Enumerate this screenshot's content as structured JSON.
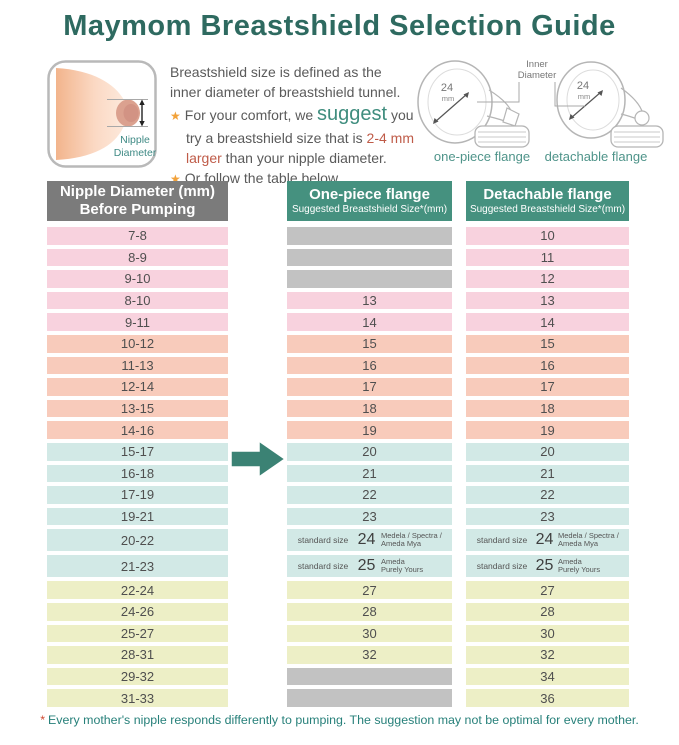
{
  "title": "Maymom Breastshield Selection Guide",
  "colors": {
    "title_teal": "#2e6a60",
    "header_teal": "#45917f",
    "header_gray": "#7b7b7b",
    "row_pink": "#f8d2de",
    "row_salmon": "#f8cbbb",
    "row_teal": "#d2e9e6",
    "row_yellow": "#edefc6",
    "empty_gray": "#c2c2c2",
    "highlight_red": "#bf5b48",
    "suggest_teal": "#3f8d7e",
    "star_orange": "#f2a23a",
    "arrow_green": "#3b8274",
    "footnote_teal": "#27807a"
  },
  "intro": {
    "line1": "Breastshield size is defined as the",
    "line2": "inner diameter of breastshield tunnel.",
    "bullet1_pre": "For your comfort, we ",
    "bullet1_emph": "suggest",
    "bullet1_post": " you",
    "bullet1_line2_pre": "try a breastshield size that is ",
    "bullet1_line2_hl": "2-4 mm",
    "bullet1_line3_hl": "larger",
    "bullet1_line3_post": " than your nipple diameter.",
    "bullet2": "Or follow the table below.",
    "nipple_label_line1": "Nipple",
    "nipple_label_line2": "Diameter"
  },
  "flanges": {
    "inner_diameter_line1": "Inner",
    "inner_diameter_line2": "Diameter",
    "left_size": "24",
    "left_unit": "mm",
    "right_size": "24",
    "right_unit": "mm",
    "left_caption": "one-piece flange",
    "right_caption": "detachable flange"
  },
  "table": {
    "col1_header": {
      "line1": "Nipple Diameter (mm)",
      "line2": "Before Pumping"
    },
    "col2_header": {
      "line1": "One-piece flange",
      "line2": "Suggested Breastshield Size*(mm)"
    },
    "col3_header": {
      "line1": "Detachable flange",
      "line2": "Suggested Breastshield Size*(mm)"
    },
    "rows": [
      {
        "nipple": "7-8",
        "color": "pink",
        "one_piece": null,
        "detachable": "10"
      },
      {
        "nipple": "8-9",
        "color": "pink",
        "one_piece": null,
        "detachable": "11"
      },
      {
        "nipple": "9-10",
        "color": "pink",
        "one_piece": null,
        "detachable": "12"
      },
      {
        "nipple": "8-10",
        "color": "pink",
        "one_piece": "13",
        "detachable": "13"
      },
      {
        "nipple": "9-11",
        "color": "pink",
        "one_piece": "14",
        "detachable": "14"
      },
      {
        "nipple": "10-12",
        "color": "salmon",
        "one_piece": "15",
        "detachable": "15"
      },
      {
        "nipple": "11-13",
        "color": "salmon",
        "one_piece": "16",
        "detachable": "16"
      },
      {
        "nipple": "12-14",
        "color": "salmon",
        "one_piece": "17",
        "detachable": "17"
      },
      {
        "nipple": "13-15",
        "color": "salmon",
        "one_piece": "18",
        "detachable": "18"
      },
      {
        "nipple": "14-16",
        "color": "salmon",
        "one_piece": "19",
        "detachable": "19"
      },
      {
        "nipple": "15-17",
        "color": "teal",
        "one_piece": "20",
        "detachable": "20"
      },
      {
        "nipple": "16-18",
        "color": "teal",
        "one_piece": "21",
        "detachable": "21"
      },
      {
        "nipple": "17-19",
        "color": "teal",
        "one_piece": "22",
        "detachable": "22"
      },
      {
        "nipple": "19-21",
        "color": "teal",
        "one_piece": "23",
        "detachable": "23"
      },
      {
        "nipple": "20-22",
        "color": "teal",
        "tall": true,
        "one_piece": {
          "label": "standard size",
          "size": "24",
          "brands": [
            "Medela / Spectra /",
            "Ameda Mya"
          ]
        },
        "detachable": {
          "label": "standard size",
          "size": "24",
          "brands": [
            "Medela / Spectra /",
            "Ameda Mya"
          ]
        }
      },
      {
        "nipple": "21-23",
        "color": "teal",
        "tall": true,
        "one_piece": {
          "label": "standard size",
          "size": "25",
          "brands": [
            "Ameda",
            "Purely Yours"
          ]
        },
        "detachable": {
          "label": "standard size",
          "size": "25",
          "brands": [
            "Ameda",
            "Purely Yours"
          ]
        }
      },
      {
        "nipple": "22-24",
        "color": "yellow",
        "one_piece": "27",
        "detachable": "27"
      },
      {
        "nipple": "24-26",
        "color": "yellow",
        "one_piece": "28",
        "detachable": "28"
      },
      {
        "nipple": "25-27",
        "color": "yellow",
        "one_piece": "30",
        "detachable": "30"
      },
      {
        "nipple": "28-31",
        "color": "yellow",
        "one_piece": "32",
        "detachable": "32"
      },
      {
        "nipple": "29-32",
        "color": "yellow",
        "one_piece": null,
        "detachable": "34"
      },
      {
        "nipple": "31-33",
        "color": "yellow",
        "one_piece": null,
        "detachable": "36"
      }
    ]
  },
  "footnote": {
    "star": "*",
    "text": "Every mother's nipple responds differently to pumping. The suggestion may not be optimal for every mother."
  }
}
